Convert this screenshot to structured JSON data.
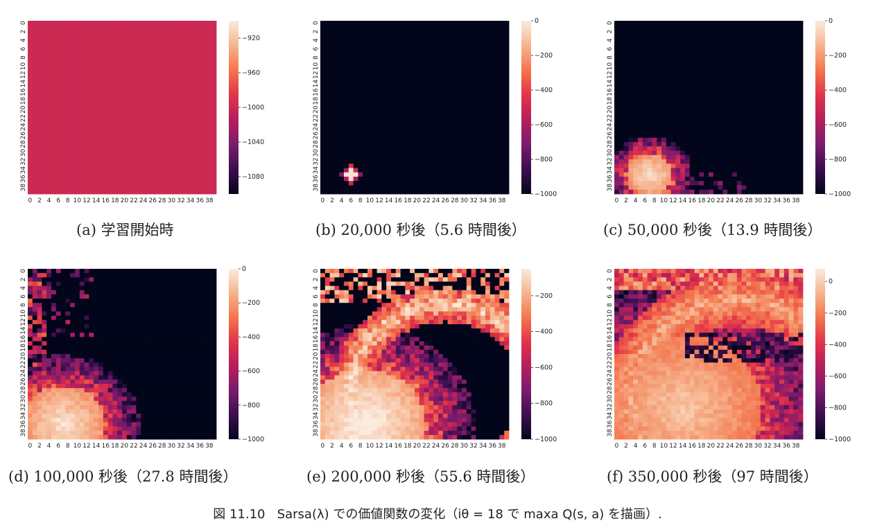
{
  "figure": {
    "caption_label": "図 11.10",
    "caption_text": "Sarsa(λ) での価値関数の変化（iθ = 18 で maxa Q(s, a) を描画）."
  },
  "axis_ticks": [
    "0",
    "2",
    "4",
    "6",
    "8",
    "10",
    "12",
    "14",
    "16",
    "18",
    "20",
    "22",
    "24",
    "26",
    "28",
    "30",
    "32",
    "34",
    "36",
    "38"
  ],
  "colors": {
    "cmap": [
      "#03051a",
      "#3b0f4f",
      "#7a1c6c",
      "#b51f5b",
      "#e2334a",
      "#f3754d",
      "#f6b48e",
      "#faebdd"
    ]
  },
  "chart_data": [
    {
      "type": "heatmap",
      "caption": "(a) 学習開始時",
      "grid": [
        40,
        40
      ],
      "pattern": "uniform",
      "uniform_value": -1000,
      "vmin": -1100,
      "vmax": -900,
      "colorbar_ticks": [
        -920,
        -960,
        -1000,
        -1040,
        -1080
      ],
      "colorbar_labels": [
        "−920",
        "−960",
        "−1000",
        "−1040",
        "−1080"
      ]
    },
    {
      "type": "heatmap",
      "caption": "(b) 20,000 秒後（5.6 時間後）",
      "grid": [
        40,
        40
      ],
      "pattern": "blob",
      "hot_center": [
        6,
        35
      ],
      "hot_radius": 2,
      "background_value": -1000,
      "vmin": -1000,
      "vmax": 0,
      "colorbar_ticks": [
        0,
        -200,
        -400,
        -600,
        -800,
        -1000
      ],
      "colorbar_labels": [
        "0",
        "−200",
        "−400",
        "−600",
        "−800",
        "−1000"
      ]
    },
    {
      "type": "heatmap",
      "caption": "(c) 50,000 秒後（13.9 時間後）",
      "grid": [
        40,
        40
      ],
      "pattern": "spread",
      "hot_center": [
        7,
        35
      ],
      "hot_radius": 5,
      "background_value": -1000,
      "vmin": -1000,
      "vmax": 0,
      "colorbar_ticks": [
        0,
        -200,
        -400,
        -600,
        -800,
        -1000
      ],
      "colorbar_labels": [
        "0",
        "−200",
        "−400",
        "−600",
        "−800",
        "−1000"
      ]
    },
    {
      "type": "heatmap",
      "caption": "(d) 100,000 秒後（27.8 時間後）",
      "grid": [
        40,
        40
      ],
      "pattern": "wide",
      "hot_center": [
        7,
        36
      ],
      "hot_radius": 9,
      "background_value": -1000,
      "vmin": -1000,
      "vmax": 0,
      "colorbar_ticks": [
        0,
        -200,
        -400,
        -600,
        -800,
        -1000
      ],
      "colorbar_labels": [
        "0",
        "−200",
        "−400",
        "−600",
        "−800",
        "−1000"
      ]
    },
    {
      "type": "heatmap",
      "caption": "(e) 200,000 秒後（55.6 時間後）",
      "grid": [
        40,
        40
      ],
      "pattern": "arc",
      "hot_center": [
        9,
        36
      ],
      "hot_radius": 13,
      "background_value": -1000,
      "vmin": -1000,
      "vmax": -50,
      "colorbar_ticks": [
        -200,
        -400,
        -600,
        -800,
        -1000
      ],
      "colorbar_labels": [
        "−200",
        "−400",
        "−600",
        "−800",
        "−1000"
      ]
    },
    {
      "type": "heatmap",
      "caption": "(f) 350,000 秒後（97 時間後）",
      "grid": [
        40,
        40
      ],
      "pattern": "full",
      "hot_center": [
        14,
        32
      ],
      "hot_radius": 17,
      "background_value": -1000,
      "vmin": -1000,
      "vmax": 80,
      "colorbar_ticks": [
        0,
        -200,
        -400,
        -600,
        -800,
        -1000
      ],
      "colorbar_labels": [
        "0",
        "−200",
        "−400",
        "−600",
        "−800",
        "−1000"
      ]
    }
  ]
}
